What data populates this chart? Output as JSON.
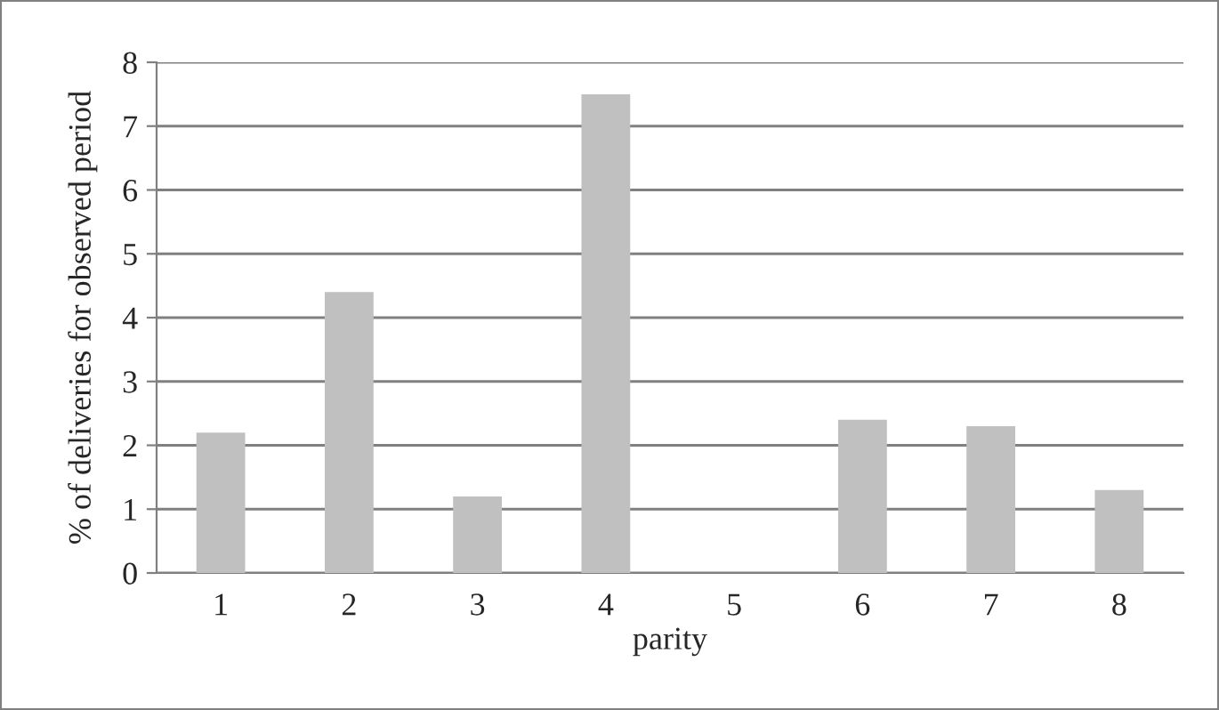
{
  "chart_data": {
    "type": "bar",
    "xlabel": "parity",
    "ylabel": "% of deliveries for observed period",
    "categories": [
      "1",
      "2",
      "3",
      "4",
      "5",
      "6",
      "7",
      "8"
    ],
    "values": [
      2.2,
      4.4,
      1.2,
      7.5,
      0,
      2.4,
      2.3,
      1.3
    ],
    "color": "#c0c0c0",
    "ylim": [
      0,
      8
    ],
    "yticks": [
      0,
      1,
      2,
      3,
      4,
      5,
      6,
      7,
      8
    ],
    "grid": "y",
    "legend": false
  }
}
